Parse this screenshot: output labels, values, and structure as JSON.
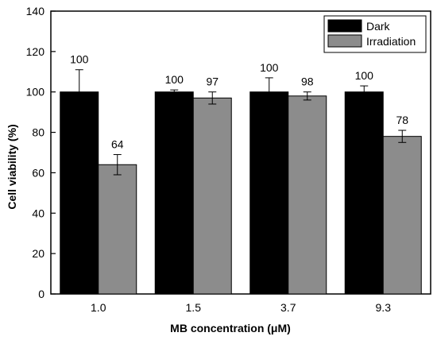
{
  "chart_data": {
    "type": "bar",
    "xlabel": "MB concentration (μM)",
    "ylabel": "Cell viability (%)",
    "ylim": [
      0,
      140
    ],
    "yticks": [
      0,
      20,
      40,
      60,
      80,
      100,
      120,
      140
    ],
    "categories": [
      "1.0",
      "1.5",
      "3.7",
      "9.3"
    ],
    "series": [
      {
        "name": "Dark",
        "color": "#000000",
        "values": [
          100,
          100,
          100,
          100
        ],
        "errors": [
          11,
          1,
          7,
          3
        ],
        "labels": [
          "100",
          "100",
          "100",
          "100"
        ]
      },
      {
        "name": "Irradiation",
        "color": "#8c8c8c",
        "values": [
          64,
          97,
          98,
          78
        ],
        "errors": [
          5,
          3,
          2,
          3
        ],
        "labels": [
          "64",
          "97",
          "98",
          "78"
        ]
      }
    ],
    "legend_position": "top-right",
    "grid": false
  }
}
